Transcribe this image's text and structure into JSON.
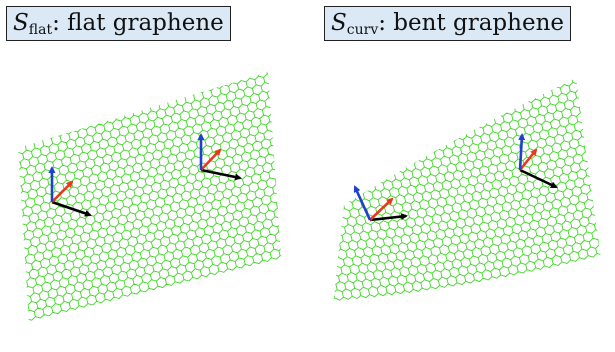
{
  "panels": [
    {
      "id": "flat",
      "symbol": "S",
      "subscript": "flat",
      "rest": ": flat graphene",
      "lattice_color": "#44d62c"
    },
    {
      "id": "curv",
      "symbol": "S",
      "subscript": "curv",
      "rest": ": bent graphene",
      "lattice_color": "#44d62c"
    }
  ],
  "axis_colors": {
    "x": "#000000",
    "y": "#e8391e",
    "z": "#1f3fd0"
  }
}
